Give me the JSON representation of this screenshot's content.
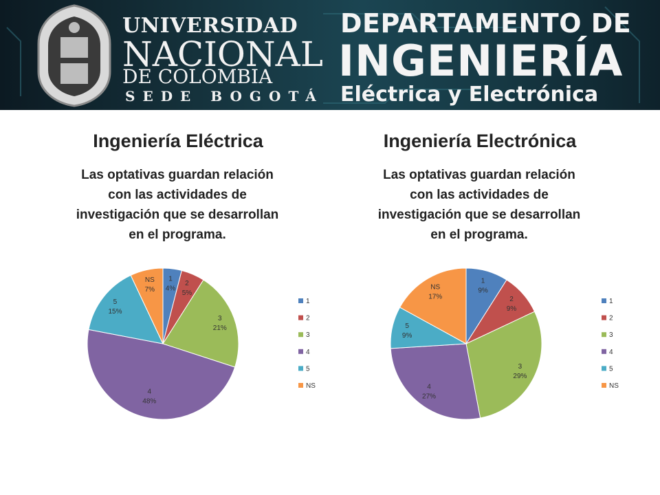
{
  "banner": {
    "university": [
      "UNIVERSIDAD",
      "NACIONAL",
      "DE COLOMBIA",
      "SEDE BOGOTÁ"
    ],
    "department": [
      "DEPARTAMENTO DE",
      "INGENIERÍA",
      "Eléctrica y Electrónica"
    ]
  },
  "charts": [
    {
      "title": "Ingeniería Eléctrica",
      "subtitle_lines": [
        "Las optativas guardan relación",
        "con las actividades de",
        "investigación que se desarrollan",
        "en el programa."
      ]
    },
    {
      "title": "Ingeniería Electrónica",
      "subtitle_lines": [
        "Las optativas guardan relación",
        "con las actividades de",
        "investigación que se desarrollan",
        "en el programa."
      ]
    }
  ],
  "colors": {
    "1": "#4f81bd",
    "2": "#c0504d",
    "3": "#9bbb59",
    "4": "#8064a2",
    "5": "#4bacc6",
    "NS": "#f79646"
  },
  "chart_data": [
    {
      "type": "pie",
      "title": "Ingeniería Eléctrica",
      "categories": [
        "1",
        "2",
        "3",
        "4",
        "5",
        "NS"
      ],
      "values": [
        4,
        5,
        21,
        48,
        15,
        7
      ],
      "labels": [
        "4%",
        "5%",
        "21%",
        "48%",
        "15%",
        "7%"
      ],
      "legend": "right"
    },
    {
      "type": "pie",
      "title": "Ingeniería Electrónica",
      "categories": [
        "1",
        "2",
        "3",
        "4",
        "5",
        "NS"
      ],
      "values": [
        9,
        9,
        29,
        27,
        9,
        17
      ],
      "labels": [
        "9%",
        "9%",
        "29%",
        "27%",
        "9%",
        "17%"
      ],
      "legend": "right"
    }
  ]
}
